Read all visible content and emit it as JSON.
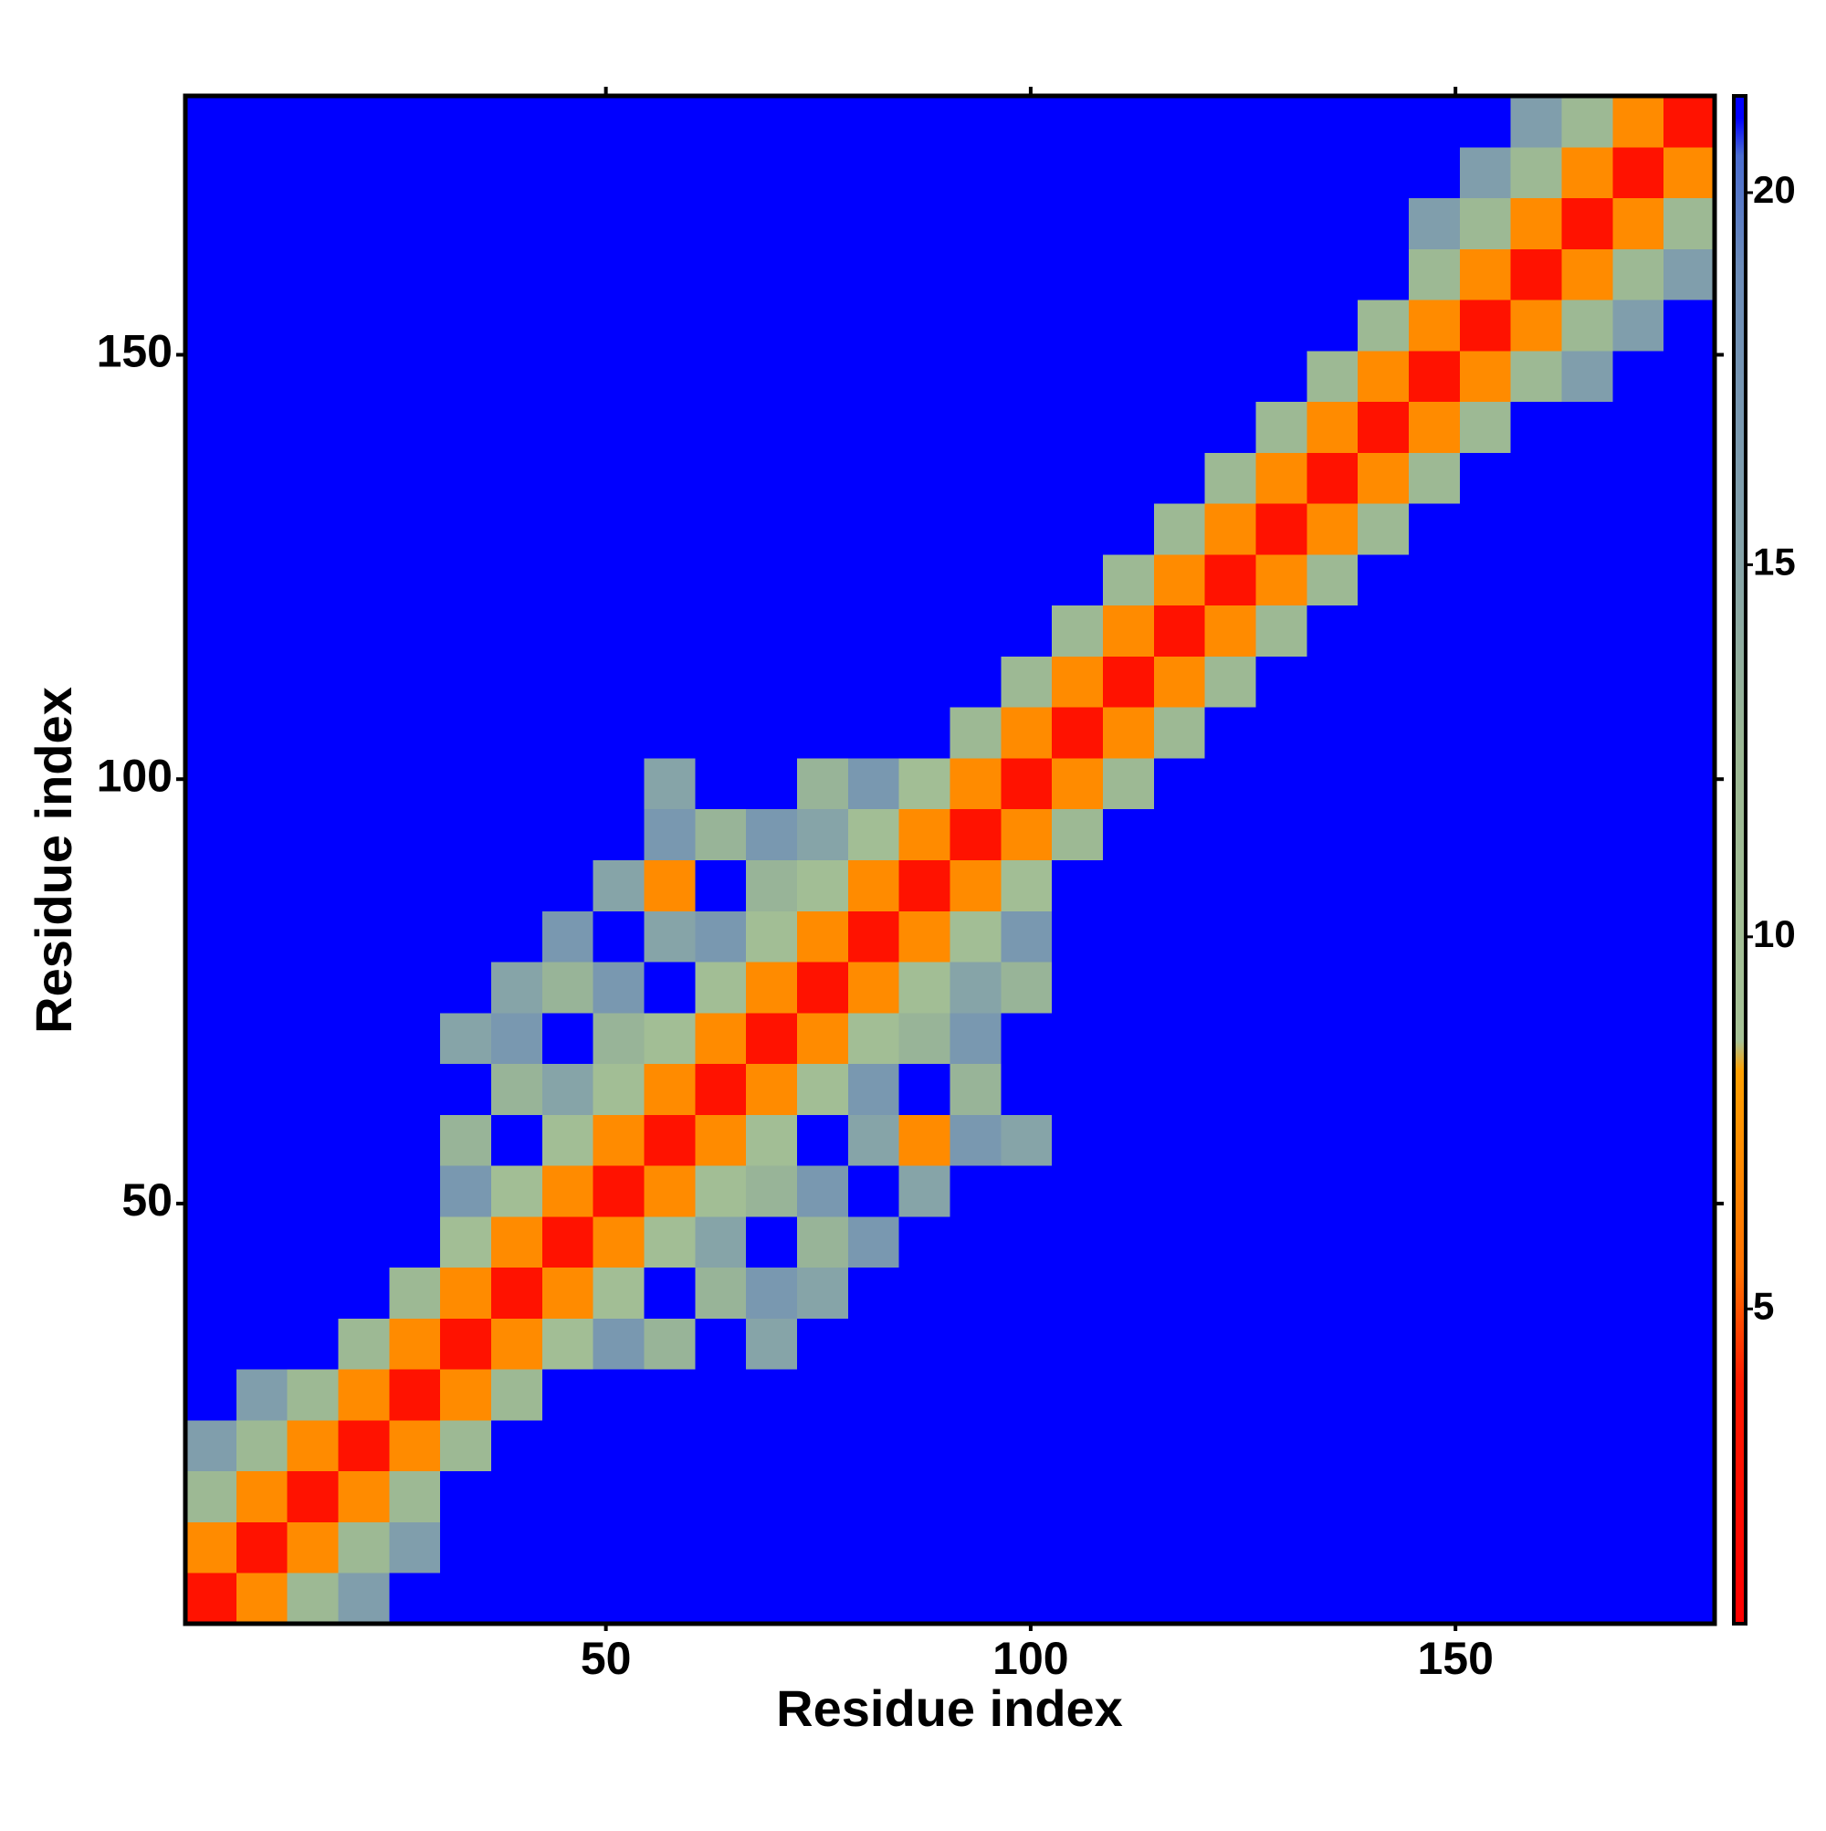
{
  "chart_data": {
    "type": "heatmap",
    "xlabel": "Residue index",
    "ylabel": "Residue index",
    "x_bins": [
      0.5,
      6.5,
      12.5,
      18.5,
      24.5,
      30.5,
      36.5,
      42.5,
      48.5,
      54.5,
      60.5,
      66.5,
      72.5,
      78.5,
      84.5,
      90.5,
      96.5,
      102.5,
      108.5,
      114.5,
      120.5,
      126.5,
      132.5,
      138.5,
      144.5,
      150.5,
      156.5,
      162.5,
      168.5,
      174.5,
      180.5
    ],
    "y_bins": [
      0.5,
      6.5,
      12.5,
      18.5,
      24.5,
      30.5,
      36.5,
      42.5,
      48.5,
      54.5,
      60.5,
      66.5,
      72.5,
      78.5,
      84.5,
      90.5,
      96.5,
      102.5,
      108.5,
      114.5,
      120.5,
      126.5,
      132.5,
      138.5,
      144.5,
      150.5,
      156.5,
      162.5,
      168.5,
      174.5,
      180.5
    ],
    "xlim": [
      0.5,
      180.5
    ],
    "ylim": [
      0.5,
      180.5
    ],
    "xticks": [
      50,
      100,
      150
    ],
    "yticks": [
      50,
      100,
      150
    ],
    "z": [
      [
        3,
        7,
        12,
        16,
        21,
        21,
        21,
        21,
        21,
        21,
        21,
        21,
        21,
        21,
        21,
        21,
        21,
        21,
        21,
        21,
        21,
        21,
        21,
        21,
        21,
        21,
        21,
        21,
        21,
        21
      ],
      [
        7,
        3,
        7,
        12,
        16,
        21,
        21,
        21,
        21,
        21,
        21,
        21,
        21,
        21,
        21,
        21,
        21,
        21,
        21,
        21,
        21,
        21,
        21,
        21,
        21,
        21,
        21,
        21,
        21,
        21
      ],
      [
        12,
        7,
        3,
        7,
        12,
        21,
        21,
        21,
        21,
        21,
        21,
        21,
        21,
        21,
        21,
        21,
        21,
        21,
        21,
        21,
        21,
        21,
        21,
        21,
        21,
        21,
        21,
        21,
        21,
        21
      ],
      [
        16,
        12,
        7,
        3,
        7,
        12,
        21,
        21,
        21,
        21,
        21,
        21,
        21,
        21,
        21,
        21,
        21,
        21,
        21,
        21,
        21,
        21,
        21,
        21,
        21,
        21,
        21,
        21,
        21,
        21
      ],
      [
        21,
        16,
        12,
        7,
        3,
        7,
        12,
        21,
        21,
        21,
        21,
        21,
        21,
        21,
        21,
        21,
        21,
        21,
        21,
        21,
        21,
        21,
        21,
        21,
        21,
        21,
        21,
        21,
        21,
        21
      ],
      [
        21,
        21,
        21,
        12,
        7,
        3,
        7,
        10,
        17,
        13,
        21,
        15,
        21,
        21,
        21,
        21,
        21,
        21,
        21,
        21,
        21,
        21,
        21,
        21,
        21,
        21,
        21,
        21,
        21,
        21
      ],
      [
        21,
        21,
        21,
        21,
        12,
        7,
        3,
        7,
        10,
        21,
        13,
        17,
        15,
        21,
        21,
        21,
        21,
        21,
        21,
        21,
        21,
        21,
        21,
        21,
        21,
        21,
        21,
        21,
        21,
        21
      ],
      [
        21,
        21,
        21,
        21,
        21,
        10,
        7,
        3,
        7,
        10,
        15,
        21,
        13,
        17,
        21,
        21,
        21,
        21,
        21,
        21,
        21,
        21,
        21,
        21,
        21,
        21,
        21,
        21,
        21,
        21
      ],
      [
        21,
        21,
        21,
        21,
        21,
        17,
        10,
        7,
        3,
        7,
        10,
        13,
        17,
        21,
        15,
        21,
        21,
        21,
        21,
        21,
        21,
        21,
        21,
        21,
        21,
        21,
        21,
        21,
        21,
        21
      ],
      [
        21,
        21,
        21,
        21,
        21,
        13,
        21,
        10,
        7,
        3,
        7,
        10,
        21,
        15,
        7,
        17,
        15,
        21,
        21,
        21,
        21,
        21,
        21,
        21,
        21,
        21,
        21,
        21,
        21,
        21
      ],
      [
        21,
        21,
        21,
        21,
        21,
        21,
        13,
        15,
        10,
        7,
        3,
        7,
        10,
        17,
        21,
        13,
        21,
        21,
        21,
        21,
        21,
        21,
        21,
        21,
        21,
        21,
        21,
        21,
        21,
        21
      ],
      [
        21,
        21,
        21,
        21,
        21,
        15,
        17,
        21,
        13,
        10,
        7,
        3,
        7,
        10,
        13,
        17,
        21,
        21,
        21,
        21,
        21,
        21,
        21,
        21,
        21,
        21,
        21,
        21,
        21,
        21
      ],
      [
        21,
        21,
        21,
        21,
        21,
        21,
        15,
        13,
        17,
        21,
        10,
        7,
        3,
        7,
        10,
        15,
        13,
        21,
        21,
        21,
        21,
        21,
        21,
        21,
        21,
        21,
        21,
        21,
        21,
        21
      ],
      [
        21,
        21,
        21,
        21,
        21,
        21,
        21,
        17,
        21,
        15,
        17,
        10,
        7,
        3,
        7,
        10,
        17,
        21,
        21,
        21,
        21,
        21,
        21,
        21,
        21,
        21,
        21,
        21,
        21,
        21
      ],
      [
        21,
        21,
        21,
        21,
        21,
        21,
        21,
        21,
        15,
        7,
        21,
        13,
        10,
        7,
        3,
        7,
        10,
        21,
        21,
        21,
        21,
        21,
        21,
        21,
        21,
        21,
        21,
        21,
        21,
        21
      ],
      [
        21,
        21,
        21,
        21,
        21,
        21,
        21,
        21,
        21,
        17,
        13,
        17,
        15,
        10,
        7,
        3,
        7,
        12,
        21,
        21,
        21,
        21,
        21,
        21,
        21,
        21,
        21,
        21,
        21,
        21
      ],
      [
        21,
        21,
        21,
        21,
        21,
        21,
        21,
        21,
        21,
        15,
        21,
        21,
        13,
        17,
        10,
        7,
        3,
        7,
        12,
        21,
        21,
        21,
        21,
        21,
        21,
        21,
        21,
        21,
        21,
        21
      ],
      [
        21,
        21,
        21,
        21,
        21,
        21,
        21,
        21,
        21,
        21,
        21,
        21,
        21,
        21,
        21,
        12,
        7,
        3,
        7,
        12,
        21,
        21,
        21,
        21,
        21,
        21,
        21,
        21,
        21,
        21
      ],
      [
        21,
        21,
        21,
        21,
        21,
        21,
        21,
        21,
        21,
        21,
        21,
        21,
        21,
        21,
        21,
        21,
        12,
        7,
        3,
        7,
        12,
        21,
        21,
        21,
        21,
        21,
        21,
        21,
        21,
        21
      ],
      [
        21,
        21,
        21,
        21,
        21,
        21,
        21,
        21,
        21,
        21,
        21,
        21,
        21,
        21,
        21,
        21,
        21,
        12,
        7,
        3,
        7,
        12,
        21,
        21,
        21,
        21,
        21,
        21,
        21,
        21
      ],
      [
        21,
        21,
        21,
        21,
        21,
        21,
        21,
        21,
        21,
        21,
        21,
        21,
        21,
        21,
        21,
        21,
        21,
        21,
        12,
        7,
        3,
        7,
        12,
        21,
        21,
        21,
        21,
        21,
        21,
        21
      ],
      [
        21,
        21,
        21,
        21,
        21,
        21,
        21,
        21,
        21,
        21,
        21,
        21,
        21,
        21,
        21,
        21,
        21,
        21,
        21,
        12,
        7,
        3,
        7,
        12,
        21,
        21,
        21,
        21,
        21,
        21
      ],
      [
        21,
        21,
        21,
        21,
        21,
        21,
        21,
        21,
        21,
        21,
        21,
        21,
        21,
        21,
        21,
        21,
        21,
        21,
        21,
        21,
        12,
        7,
        3,
        7,
        12,
        21,
        21,
        21,
        21,
        21
      ],
      [
        21,
        21,
        21,
        21,
        21,
        21,
        21,
        21,
        21,
        21,
        21,
        21,
        21,
        21,
        21,
        21,
        21,
        21,
        21,
        21,
        21,
        12,
        7,
        3,
        7,
        12,
        21,
        21,
        21,
        21
      ],
      [
        21,
        21,
        21,
        21,
        21,
        21,
        21,
        21,
        21,
        21,
        21,
        21,
        21,
        21,
        21,
        21,
        21,
        21,
        21,
        21,
        21,
        21,
        12,
        7,
        3,
        7,
        12,
        16,
        21,
        21
      ],
      [
        21,
        21,
        21,
        21,
        21,
        21,
        21,
        21,
        21,
        21,
        21,
        21,
        21,
        21,
        21,
        21,
        21,
        21,
        21,
        21,
        21,
        21,
        21,
        12,
        7,
        3,
        7,
        12,
        16,
        21
      ],
      [
        21,
        21,
        21,
        21,
        21,
        21,
        21,
        21,
        21,
        21,
        21,
        21,
        21,
        21,
        21,
        21,
        21,
        21,
        21,
        21,
        21,
        21,
        21,
        21,
        12,
        7,
        3,
        7,
        12,
        16
      ],
      [
        21,
        21,
        21,
        21,
        21,
        21,
        21,
        21,
        21,
        21,
        21,
        21,
        21,
        21,
        21,
        21,
        21,
        21,
        21,
        21,
        21,
        21,
        21,
        21,
        16,
        12,
        7,
        3,
        7,
        12
      ],
      [
        21,
        21,
        21,
        21,
        21,
        21,
        21,
        21,
        21,
        21,
        21,
        21,
        21,
        21,
        21,
        21,
        21,
        21,
        21,
        21,
        21,
        21,
        21,
        21,
        21,
        16,
        12,
        7,
        3,
        7
      ],
      [
        21,
        21,
        21,
        21,
        21,
        21,
        21,
        21,
        21,
        21,
        21,
        21,
        21,
        21,
        21,
        21,
        21,
        21,
        21,
        21,
        21,
        21,
        21,
        21,
        21,
        21,
        16,
        12,
        7,
        3
      ]
    ],
    "colorbar": {
      "lim": [
        0.77,
        21.3
      ],
      "ticks": [
        5,
        10,
        15,
        20
      ]
    },
    "colorscale": [
      [
        0.77,
        "#ff0000"
      ],
      [
        4,
        "#ff1a00"
      ],
      [
        5.5,
        "#ff7000"
      ],
      [
        8.2,
        "#ffa000"
      ],
      [
        8.6,
        "#a6c296"
      ],
      [
        12.5,
        "#9cb894"
      ],
      [
        15,
        "#86a4a8"
      ],
      [
        19,
        "#6c8cb8"
      ],
      [
        20.5,
        "#4a6cd0"
      ],
      [
        21,
        "#0000ff"
      ],
      [
        21.3,
        "#0000ff"
      ]
    ]
  }
}
